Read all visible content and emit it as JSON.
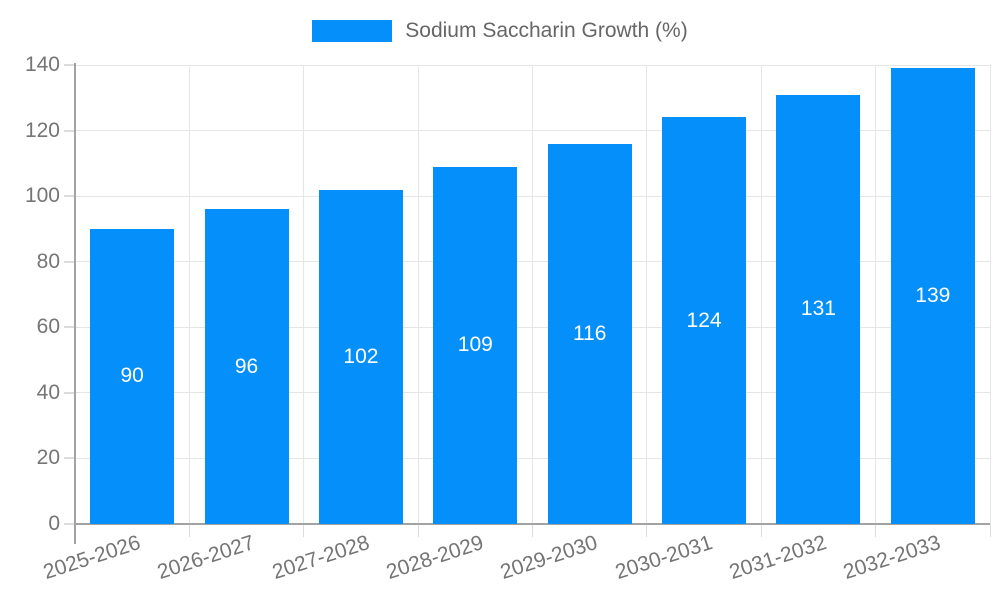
{
  "chart_data": {
    "type": "bar",
    "legend_label": "Sodium Saccharin Growth (%)",
    "legend_position": "top-center",
    "categories": [
      "2025-2026",
      "2026-2027",
      "2027-2028",
      "2028-2029",
      "2029-2030",
      "2030-2031",
      "2031-2032",
      "2032-2033"
    ],
    "values": [
      90,
      96,
      102,
      109,
      116,
      124,
      131,
      139
    ],
    "value_labels": [
      "90",
      "96",
      "102",
      "109",
      "116",
      "124",
      "131",
      "139"
    ],
    "ylim": [
      0,
      140
    ],
    "yticks": [
      0,
      20,
      40,
      60,
      80,
      100,
      120,
      140
    ],
    "grid": true,
    "colors": {
      "bar": "#058FFA",
      "bar_value_text": "#ffffff",
      "axis_text": "#757575",
      "legend_text": "#666666",
      "gridline": "#e6e6e6",
      "axis_line": "#a3a3a3",
      "background": "#ffffff"
    }
  }
}
